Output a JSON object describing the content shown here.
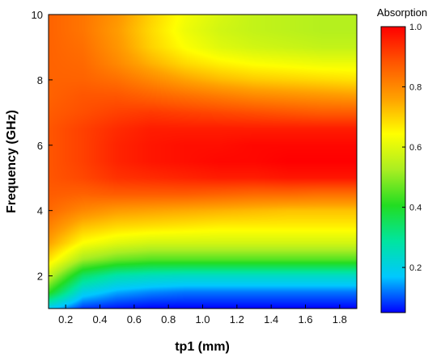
{
  "chart_data": {
    "type": "heatmap",
    "title": "",
    "xlabel": "tp1 (mm)",
    "ylabel": "Frequency (GHz)",
    "xlim": [
      0.1,
      1.9
    ],
    "ylim": [
      1,
      10
    ],
    "x_ticks": [
      "0.2",
      "0.4",
      "0.6",
      "0.8",
      "1.0",
      "1.2",
      "1.4",
      "1.6",
      "1.8"
    ],
    "y_ticks": [
      "2",
      "4",
      "6",
      "8",
      "10"
    ],
    "x": [
      0.1,
      0.3,
      0.5,
      0.7,
      0.9,
      1.1,
      1.3,
      1.5,
      1.7,
      1.9
    ],
    "y": [
      1.0,
      1.5,
      2.0,
      2.5,
      3.0,
      3.5,
      4.0,
      4.5,
      5.0,
      5.5,
      6.0,
      6.5,
      7.0,
      7.5,
      8.0,
      8.5,
      9.0,
      9.5,
      10.0
    ],
    "z": [
      [
        0.18,
        0.08,
        0.06,
        0.05,
        0.05,
        0.05,
        0.05,
        0.05,
        0.05,
        0.05
      ],
      [
        0.42,
        0.2,
        0.15,
        0.13,
        0.12,
        0.12,
        0.12,
        0.12,
        0.12,
        0.12
      ],
      [
        0.56,
        0.34,
        0.27,
        0.25,
        0.24,
        0.24,
        0.24,
        0.24,
        0.24,
        0.24
      ],
      [
        0.68,
        0.52,
        0.47,
        0.45,
        0.45,
        0.45,
        0.45,
        0.45,
        0.45,
        0.45
      ],
      [
        0.76,
        0.64,
        0.6,
        0.58,
        0.58,
        0.58,
        0.58,
        0.58,
        0.58,
        0.58
      ],
      [
        0.81,
        0.72,
        0.69,
        0.68,
        0.67,
        0.66,
        0.66,
        0.66,
        0.66,
        0.66
      ],
      [
        0.85,
        0.8,
        0.77,
        0.76,
        0.75,
        0.74,
        0.73,
        0.72,
        0.72,
        0.72
      ],
      [
        0.87,
        0.86,
        0.87,
        0.87,
        0.87,
        0.86,
        0.85,
        0.85,
        0.84,
        0.84
      ],
      [
        0.88,
        0.9,
        0.93,
        0.94,
        0.95,
        0.96,
        0.96,
        0.97,
        0.97,
        0.97
      ],
      [
        0.88,
        0.91,
        0.95,
        0.97,
        0.98,
        0.99,
        0.99,
        1.0,
        1.0,
        1.0
      ],
      [
        0.88,
        0.91,
        0.95,
        0.97,
        0.98,
        0.98,
        0.99,
        0.99,
        0.99,
        0.99
      ],
      [
        0.88,
        0.91,
        0.94,
        0.96,
        0.96,
        0.96,
        0.96,
        0.96,
        0.96,
        0.96
      ],
      [
        0.87,
        0.89,
        0.91,
        0.92,
        0.91,
        0.9,
        0.89,
        0.88,
        0.87,
        0.87
      ],
      [
        0.86,
        0.88,
        0.88,
        0.86,
        0.84,
        0.82,
        0.8,
        0.79,
        0.78,
        0.77
      ],
      [
        0.86,
        0.86,
        0.84,
        0.8,
        0.76,
        0.73,
        0.71,
        0.7,
        0.69,
        0.68
      ],
      [
        0.86,
        0.85,
        0.8,
        0.74,
        0.69,
        0.66,
        0.64,
        0.63,
        0.62,
        0.62
      ],
      [
        0.86,
        0.84,
        0.78,
        0.7,
        0.64,
        0.6,
        0.58,
        0.57,
        0.56,
        0.56
      ],
      [
        0.86,
        0.83,
        0.77,
        0.69,
        0.62,
        0.58,
        0.56,
        0.55,
        0.54,
        0.54
      ],
      [
        0.86,
        0.83,
        0.78,
        0.7,
        0.63,
        0.59,
        0.56,
        0.55,
        0.54,
        0.54
      ]
    ],
    "colorbar": {
      "title": "Absorption",
      "range": [
        0.05,
        1.0
      ],
      "ticks": [
        "1.0",
        "0.8",
        "0.6",
        "0.4",
        "0.2"
      ],
      "tick_values": [
        1.0,
        0.8,
        0.6,
        0.4,
        0.2
      ],
      "colormap": [
        "#0000ff",
        "#00c8ff",
        "#00e5a0",
        "#22dd22",
        "#aaee22",
        "#ffff00",
        "#ffa000",
        "#ff5500",
        "#ff0000"
      ]
    }
  }
}
